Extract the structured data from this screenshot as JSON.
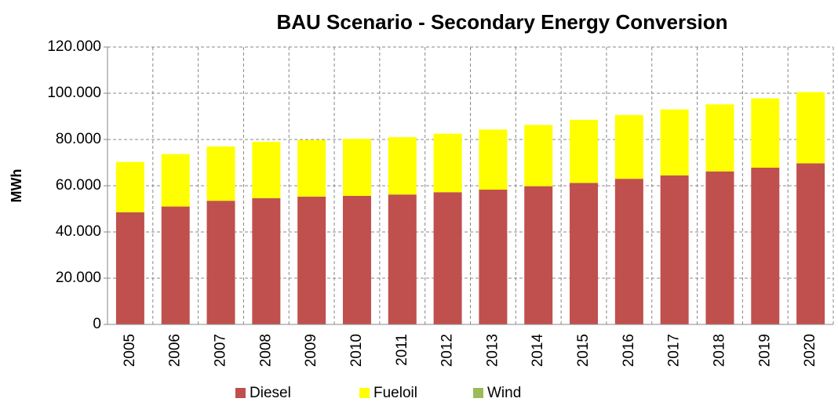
{
  "chart_data": {
    "type": "bar",
    "stacked": true,
    "title": "BAU Scenario - Secondary Energy Conversion",
    "y_label": "MWh",
    "categories": [
      "2005",
      "2006",
      "2007",
      "2008",
      "2009",
      "2010",
      "2011",
      "2012",
      "2013",
      "2014",
      "2015",
      "2016",
      "2017",
      "2018",
      "2019",
      "2020"
    ],
    "series": [
      {
        "name": "Diesel",
        "color": "#c0504d",
        "values": [
          48500,
          51000,
          53500,
          54600,
          55300,
          55600,
          56200,
          57200,
          58300,
          59800,
          61200,
          63000,
          64500,
          66200,
          67800,
          69700
        ]
      },
      {
        "name": "Fueloil",
        "color": "#ffff00",
        "values": [
          21800,
          22700,
          23500,
          24400,
          24500,
          24700,
          24800,
          25300,
          26000,
          26500,
          27300,
          27600,
          28500,
          29000,
          30000,
          30800
        ]
      },
      {
        "name": "Wind",
        "color": "#9bbb59",
        "values": [
          0,
          0,
          0,
          0,
          0,
          0,
          0,
          0,
          0,
          0,
          0,
          0,
          0,
          0,
          0,
          0
        ]
      }
    ],
    "ylim": [
      0,
      120000
    ],
    "yticks": [
      0,
      {
        "value": 20000,
        "label": "20.000"
      },
      {
        "value": 40000,
        "label": "40.000"
      },
      {
        "value": 60000,
        "label": "60.000"
      },
      {
        "value": 80000,
        "label": "80.000"
      },
      {
        "value": 100000,
        "label": "100.000"
      },
      {
        "value": 120000,
        "label": "120.000"
      }
    ],
    "grid": true,
    "legend": "bottom"
  }
}
